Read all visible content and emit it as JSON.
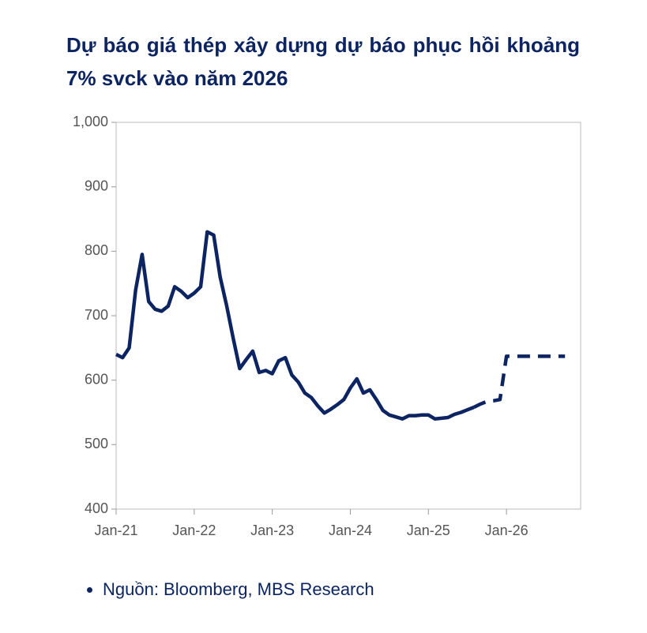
{
  "chart_data": {
    "type": "line",
    "title": "Dự báo giá thép xây dựng dự báo phục hồi khoảng 7% svck vào năm 2026",
    "source": "Nguồn: Bloomberg, MBS Research",
    "x": [
      2021,
      2021.083,
      2021.167,
      2021.25,
      2021.333,
      2021.417,
      2021.5,
      2021.583,
      2021.667,
      2021.75,
      2021.833,
      2021.917,
      2022,
      2022.083,
      2022.167,
      2022.25,
      2022.333,
      2022.417,
      2022.5,
      2022.583,
      2022.667,
      2022.75,
      2022.833,
      2022.917,
      2023,
      2023.083,
      2023.167,
      2023.25,
      2023.333,
      2023.417,
      2023.5,
      2023.583,
      2023.667,
      2023.75,
      2023.833,
      2023.917,
      2024,
      2024.083,
      2024.167,
      2024.25,
      2024.333,
      2024.417,
      2024.5,
      2024.583,
      2024.667,
      2024.75,
      2024.833,
      2024.917,
      2025,
      2025.083,
      2025.167,
      2025.25,
      2025.333,
      2025.417,
      2025.5,
      2025.583,
      2025.667,
      2025.75,
      2025.833,
      2025.917,
      2026,
      2026.083,
      2026.167,
      2026.25,
      2026.333,
      2026.417,
      2026.5,
      2026.583,
      2026.667,
      2026.75
    ],
    "series": [
      {
        "color": "#0c2461",
        "dashed": false,
        "values": [
          640,
          635,
          650,
          740,
          795,
          722,
          710,
          707,
          715,
          745,
          738,
          728,
          735,
          745,
          830,
          825,
          760,
          715,
          665,
          618,
          632,
          645,
          612,
          615,
          610,
          630,
          635,
          608,
          597,
          580,
          573,
          560,
          549,
          555,
          562,
          570,
          588,
          602,
          580,
          585,
          570,
          553,
          546,
          543,
          540,
          545,
          545,
          546,
          546,
          540,
          541,
          542,
          547,
          550,
          554,
          558,
          null,
          null,
          null,
          null,
          null,
          null,
          null,
          null,
          null,
          null,
          null,
          null,
          null,
          null
        ]
      },
      {
        "color": "#0c2461",
        "dashed": true,
        "values": [
          null,
          null,
          null,
          null,
          null,
          null,
          null,
          null,
          null,
          null,
          null,
          null,
          null,
          null,
          null,
          null,
          null,
          null,
          null,
          null,
          null,
          null,
          null,
          null,
          null,
          null,
          null,
          null,
          null,
          null,
          null,
          null,
          null,
          null,
          null,
          null,
          null,
          null,
          null,
          null,
          null,
          null,
          null,
          null,
          null,
          null,
          null,
          null,
          null,
          null,
          null,
          null,
          null,
          null,
          null,
          558,
          563,
          567,
          568,
          570,
          637,
          637,
          637,
          637,
          637,
          637,
          637,
          637,
          637,
          637
        ]
      }
    ],
    "xlim": [
      2021,
      2026.95
    ],
    "xticks": [
      {
        "value": 2021,
        "label": "Jan-21"
      },
      {
        "value": 2022,
        "label": "Jan-22"
      },
      {
        "value": 2023,
        "label": "Jan-23"
      },
      {
        "value": 2024,
        "label": "Jan-24"
      },
      {
        "value": 2025,
        "label": "Jan-25"
      },
      {
        "value": 2026,
        "label": "Jan-26"
      }
    ],
    "ylim": [
      400,
      1000
    ],
    "yticks": [
      400,
      500,
      600,
      700,
      800,
      900,
      {
        "value": 1000,
        "label": "1,000"
      }
    ],
    "grid": false
  }
}
